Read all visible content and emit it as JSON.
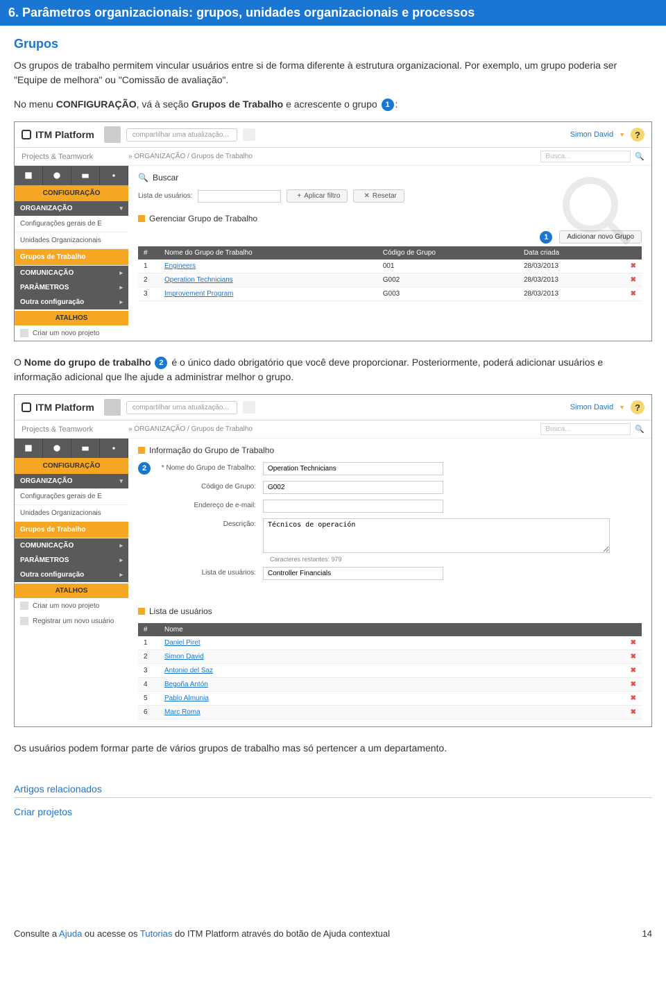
{
  "heading": "6. Parâmetros organizacionais: grupos, unidades organizacionais e processos",
  "section_title": "Grupos",
  "intro_p1": "Os grupos de trabalho permitem vincular usuários entre si de forma diferente à estrutura organizacional. Por exemplo, um grupo poderia ser \"Equipe de melhora\" ou \"Comissão de avaliação\".",
  "intro_p2_pre": "No menu ",
  "intro_p2_bold1": "CONFIGURAÇÃO",
  "intro_p2_mid": ", vá à seção ",
  "intro_p2_bold2": "Grupos de Trabalho",
  "intro_p2_post": " e acrescente o grupo ",
  "intro_p2_end": ":",
  "mid_p_pre": "O ",
  "mid_p_bold": "Nome do grupo de trabalho",
  "mid_p_post": " é o único dado obrigatório que você deve proporcionar. Posteriormente, poderá adicionar usuários e informação adicional que lhe ajude a administrar melhor o grupo.",
  "closing": "Os usuários podem formar parte de vários grupos de trabalho mas só pertencer a um departamento.",
  "related_heading": "Artigos relacionados",
  "related_link": "Criar projetos",
  "footer_text_pre": "Consulte a ",
  "footer_link1": "Ajuda",
  "footer_text_mid": " ou acesse os ",
  "footer_link2": "Tutorias",
  "footer_text_post": " do ITM Platform através do botão de Ajuda contextual",
  "page_number": "14",
  "app": {
    "logo": "ITM Platform",
    "tagline": "Projects & Teamwork",
    "share_placeholder": "compartilhar uma atualização...",
    "user": "Simon David",
    "help": "?",
    "breadcrumb": "» ORGANIZAÇÃO / Grupos de Trabalho",
    "search_placeholder": "Busca...",
    "search_icon": "🔍"
  },
  "sidebar": {
    "config": "CONFIGURAÇÃO",
    "sec_org": "ORGANIZAÇÃO",
    "item_config_gerais": "Configurações gerais de E",
    "item_unidades": "Unidades Organizacionais",
    "item_grupos": "Grupos de Trabalho",
    "sec_comunic": "COMUNICAÇÃO",
    "sec_param": "PARÂMETROS",
    "sec_outra": "Outra configuração",
    "atalhos": "ATALHOS",
    "shortcut_novo": "Criar um novo projeto",
    "shortcut_registrar": "Registrar um novo usuário"
  },
  "screen1": {
    "buscar_title": "Buscar",
    "lista_label": "Lista de usuários:",
    "btn_filtro": "Aplicar filtro",
    "btn_resetar": "Resetar",
    "panel_title": "Gerenciar Grupo de Trabalho",
    "btn_add": "Adicionar novo Grupo",
    "callout1": "1",
    "cols": {
      "num": "#",
      "name": "Nome do Grupo de Trabalho",
      "code": "Código de Grupo",
      "date": "Data criada"
    },
    "rows": [
      {
        "n": "1",
        "name": "Engineers",
        "code": "001",
        "date": "28/03/2013"
      },
      {
        "n": "2",
        "name": "Operation Technicians",
        "code": "G002",
        "date": "28/03/2013"
      },
      {
        "n": "3",
        "name": "Improvement Program",
        "code": "G003",
        "date": "28/03/2013"
      }
    ]
  },
  "screen2": {
    "panel_title": "Informação do Grupo de Trabalho",
    "callout2": "2",
    "lbl_nome": "* Nome do Grupo de Trabalho:",
    "val_nome": "Operation Technicians",
    "lbl_codigo": "Código de Grupo:",
    "val_codigo": "G002",
    "lbl_email": "Endereço de e-mail:",
    "val_email": "",
    "lbl_desc": "Descrição:",
    "val_desc": "Técnicos de operación",
    "char_left": "Caracteres restantes: 979",
    "lbl_lista": "Lista de usuários:",
    "val_lista": "Controller Financials",
    "users_title": "Lista de usuários",
    "user_cols": {
      "num": "#",
      "name": "Nome"
    },
    "users": [
      {
        "n": "1",
        "name": "Daniel Piret"
      },
      {
        "n": "2",
        "name": "Simon David"
      },
      {
        "n": "3",
        "name": "Antonio del Saz"
      },
      {
        "n": "4",
        "name": "Begoña Antón"
      },
      {
        "n": "5",
        "name": "Pablo Almunia"
      },
      {
        "n": "6",
        "name": "Marc Roma"
      }
    ]
  }
}
